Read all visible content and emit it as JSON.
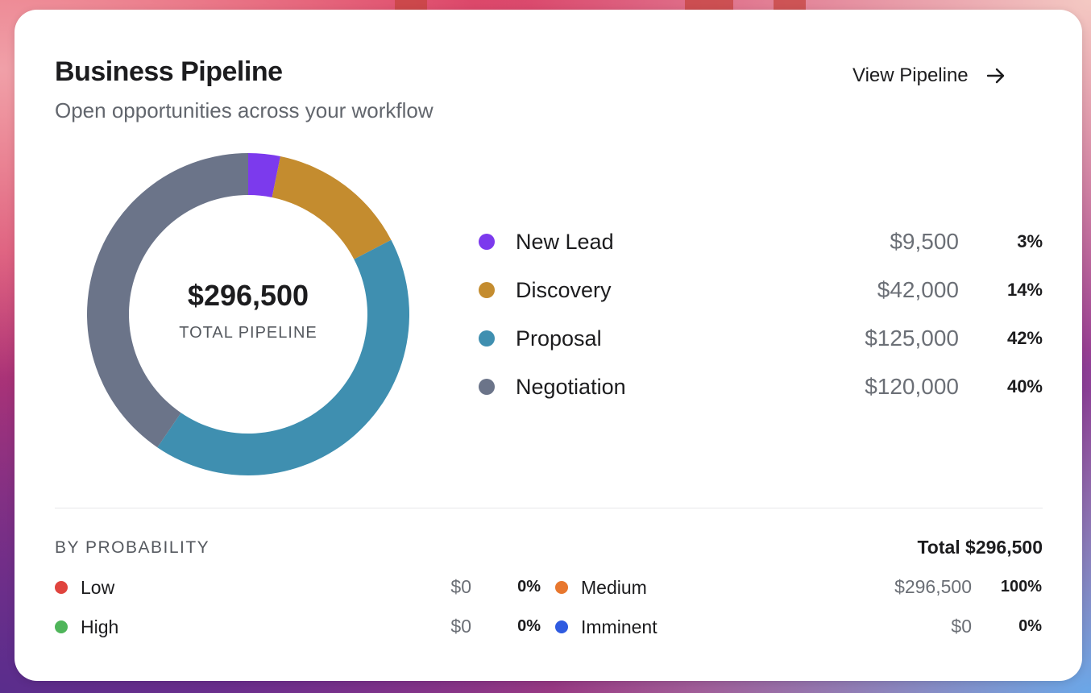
{
  "header": {
    "title": "Business Pipeline",
    "subtitle": "Open opportunities across your workflow",
    "view_link_label": "View Pipeline"
  },
  "donut": {
    "total_value": "$296,500",
    "total_label": "TOTAL PIPELINE"
  },
  "chart_data": {
    "type": "pie",
    "categories": [
      "New Lead",
      "Discovery",
      "Proposal",
      "Negotiation"
    ],
    "values": [
      9500,
      42000,
      125000,
      120000
    ],
    "colors": [
      "#7c3aed",
      "#c48c2f",
      "#3f8fb0",
      "#6b7489"
    ]
  },
  "stages": [
    {
      "name": "New Lead",
      "amount": "$9,500",
      "percent": "3%",
      "color": "#7c3aed"
    },
    {
      "name": "Discovery",
      "amount": "$42,000",
      "percent": "14%",
      "color": "#c48c2f"
    },
    {
      "name": "Proposal",
      "amount": "$125,000",
      "percent": "42%",
      "color": "#3f8fb0"
    },
    {
      "name": "Negotiation",
      "amount": "$120,000",
      "percent": "40%",
      "color": "#6b7489"
    }
  ],
  "probability": {
    "section_label": "BY PROBABILITY",
    "total": "Total $296,500",
    "items": [
      {
        "name": "Low",
        "amount": "$0",
        "percent": "0%",
        "color": "#e0443e"
      },
      {
        "name": "Medium",
        "amount": "$296,500",
        "percent": "100%",
        "color": "#e8772e"
      },
      {
        "name": "High",
        "amount": "$0",
        "percent": "0%",
        "color": "#4fb55a"
      },
      {
        "name": "Imminent",
        "amount": "$0",
        "percent": "0%",
        "color": "#2f5be0"
      }
    ]
  }
}
